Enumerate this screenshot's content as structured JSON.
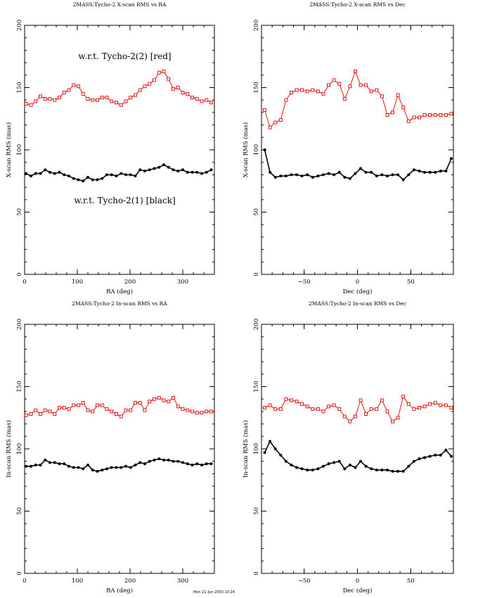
{
  "footer": "Mon 21-Jun-2003 10:24",
  "chart_data": [
    {
      "id": "xscan-ra",
      "type": "line",
      "title": "2MASS:Tycho-2 X-scan RMS vs RA",
      "xlabel": "RA (deg)",
      "ylabel": "X-scan RMS (mas)",
      "xlim": [
        0,
        360
      ],
      "ylim": [
        0,
        200
      ],
      "xticks": [
        0,
        100,
        200,
        300
      ],
      "yticks": [
        0,
        50,
        100,
        150,
        200
      ],
      "annotations": [
        {
          "text": "w.r.t. Tycho-2(2) [red]",
          "x": 190,
          "y": 173
        },
        {
          "text": "w.r.t. Tycho-2(1) [black]",
          "x": 190,
          "y": 57
        }
      ],
      "series": [
        {
          "name": "w.r.t. Tycho-2(2) [red]",
          "color": "#e00000",
          "marker": "square-open",
          "x": [
            3,
            12,
            21,
            30,
            39,
            48,
            57,
            66,
            75,
            84,
            93,
            102,
            111,
            120,
            129,
            138,
            147,
            156,
            165,
            174,
            183,
            192,
            201,
            210,
            219,
            228,
            237,
            246,
            255,
            264,
            273,
            282,
            291,
            300,
            309,
            318,
            327,
            336,
            345,
            354
          ],
          "y": [
            137,
            136,
            139,
            143,
            141,
            141,
            140,
            142,
            146,
            148,
            152,
            151,
            145,
            141,
            140,
            140,
            142,
            142,
            139,
            138,
            136,
            139,
            142,
            144,
            148,
            151,
            153,
            156,
            162,
            163,
            157,
            149,
            150,
            146,
            145,
            142,
            141,
            139,
            140,
            138
          ]
        },
        {
          "name": "w.r.t. Tycho-2(1) [black]",
          "color": "#000000",
          "marker": "filled",
          "x": [
            3,
            12,
            21,
            30,
            39,
            48,
            57,
            66,
            75,
            84,
            93,
            102,
            111,
            120,
            129,
            138,
            147,
            156,
            165,
            174,
            183,
            192,
            201,
            210,
            219,
            228,
            237,
            246,
            255,
            264,
            273,
            282,
            291,
            300,
            309,
            318,
            327,
            336,
            345,
            354
          ],
          "y": [
            81,
            79,
            81,
            81,
            84,
            82,
            81,
            82,
            80,
            79,
            77,
            76,
            75,
            78,
            76,
            76,
            77,
            80,
            80,
            79,
            81,
            80,
            80,
            79,
            84,
            83,
            84,
            85,
            86,
            88,
            86,
            84,
            83,
            84,
            82,
            82,
            82,
            81,
            82,
            84
          ]
        }
      ]
    },
    {
      "id": "xscan-dec",
      "type": "line",
      "title": "2MASS:Tycho-2 X-scan RMS vs Dec",
      "xlabel": "Dec (deg)",
      "ylabel": "X-scan RMS (mas)",
      "xlim": [
        -90,
        90
      ],
      "ylim": [
        0,
        200
      ],
      "xticks": [
        -50,
        0,
        50
      ],
      "yticks": [
        0,
        50,
        100,
        150,
        200
      ],
      "series": [
        {
          "name": "w.r.t. Tycho-2(2) [red]",
          "color": "#e00000",
          "marker": "square-open",
          "x": [
            -87,
            -82,
            -77,
            -72,
            -67,
            -62,
            -57,
            -52,
            -47,
            -42,
            -37,
            -32,
            -27,
            -22,
            -17,
            -12,
            -7,
            -2,
            3,
            8,
            13,
            18,
            23,
            28,
            33,
            38,
            43,
            48,
            53,
            58,
            63,
            68,
            73,
            78,
            83,
            88
          ],
          "y": [
            132,
            118,
            122,
            124,
            140,
            146,
            148,
            148,
            147,
            148,
            147,
            145,
            152,
            156,
            153,
            141,
            151,
            163,
            152,
            152,
            147,
            148,
            143,
            128,
            130,
            144,
            134,
            123,
            126,
            126,
            128,
            128,
            128,
            128,
            128,
            129
          ]
        },
        {
          "name": "w.r.t. Tycho-2(1) [black]",
          "color": "#000000",
          "marker": "filled",
          "x": [
            -87,
            -82,
            -77,
            -72,
            -67,
            -62,
            -57,
            -52,
            -47,
            -42,
            -37,
            -32,
            -27,
            -22,
            -17,
            -12,
            -7,
            -2,
            3,
            8,
            13,
            18,
            23,
            28,
            33,
            38,
            43,
            48,
            53,
            58,
            63,
            68,
            73,
            78,
            83,
            88
          ],
          "y": [
            100,
            82,
            78,
            79,
            79,
            80,
            80,
            79,
            80,
            78,
            79,
            80,
            81,
            80,
            82,
            78,
            77,
            81,
            85,
            82,
            82,
            79,
            80,
            79,
            80,
            80,
            76,
            80,
            84,
            83,
            82,
            82,
            82,
            83,
            83,
            93
          ]
        }
      ]
    },
    {
      "id": "inscan-ra",
      "type": "line",
      "title": "2MASS:Tycho-2 In-scan RMS vs RA",
      "xlabel": "RA (deg)",
      "ylabel": "In-scan RMS (mas)",
      "xlim": [
        0,
        360
      ],
      "ylim": [
        0,
        200
      ],
      "xticks": [
        0,
        100,
        200,
        300
      ],
      "yticks": [
        0,
        50,
        100,
        150,
        200
      ],
      "series": [
        {
          "name": "w.r.t. Tycho-2(2) [red]",
          "color": "#e00000",
          "marker": "square-open",
          "x": [
            3,
            12,
            21,
            30,
            39,
            48,
            57,
            66,
            75,
            84,
            93,
            102,
            111,
            120,
            129,
            138,
            147,
            156,
            165,
            174,
            183,
            192,
            201,
            210,
            219,
            228,
            237,
            246,
            255,
            264,
            273,
            282,
            291,
            300,
            309,
            318,
            327,
            336,
            345,
            354
          ],
          "y": [
            127,
            128,
            131,
            128,
            131,
            130,
            128,
            133,
            133,
            132,
            135,
            135,
            137,
            131,
            130,
            135,
            135,
            132,
            130,
            128,
            126,
            131,
            131,
            137,
            137,
            131,
            138,
            140,
            141,
            139,
            138,
            141,
            134,
            132,
            131,
            130,
            129,
            129,
            130,
            130
          ]
        },
        {
          "name": "w.r.t. Tycho-2(1) [black]",
          "color": "#000000",
          "marker": "filled",
          "x": [
            3,
            12,
            21,
            30,
            39,
            48,
            57,
            66,
            75,
            84,
            93,
            102,
            111,
            120,
            129,
            138,
            147,
            156,
            165,
            174,
            183,
            192,
            201,
            210,
            219,
            228,
            237,
            246,
            255,
            264,
            273,
            282,
            291,
            300,
            309,
            318,
            327,
            336,
            345,
            354
          ],
          "y": [
            86,
            86,
            87,
            87,
            91,
            89,
            89,
            88,
            88,
            86,
            85,
            85,
            84,
            87,
            83,
            82,
            83,
            84,
            85,
            85,
            85,
            86,
            85,
            87,
            89,
            88,
            90,
            91,
            92,
            91,
            91,
            90,
            90,
            89,
            88,
            87,
            88,
            87,
            88,
            88
          ]
        }
      ]
    },
    {
      "id": "inscan-dec",
      "type": "line",
      "title": "2MASS:Tycho-2 In-scan RMS vs Dec",
      "xlabel": "Dec (deg)",
      "ylabel": "In-scan RMS (mas)",
      "xlim": [
        -90,
        90
      ],
      "ylim": [
        0,
        200
      ],
      "xticks": [
        -50,
        0,
        50
      ],
      "yticks": [
        0,
        50,
        100,
        150,
        200
      ],
      "series": [
        {
          "name": "w.r.t. Tycho-2(2) [red]",
          "color": "#e00000",
          "marker": "square-open",
          "x": [
            -87,
            -82,
            -77,
            -72,
            -67,
            -62,
            -57,
            -52,
            -47,
            -42,
            -37,
            -32,
            -27,
            -22,
            -17,
            -12,
            -7,
            -2,
            3,
            8,
            13,
            18,
            23,
            28,
            33,
            38,
            43,
            48,
            53,
            58,
            63,
            68,
            73,
            78,
            83,
            88
          ],
          "y": [
            133,
            135,
            132,
            132,
            140,
            139,
            138,
            136,
            134,
            132,
            132,
            130,
            134,
            135,
            132,
            126,
            122,
            126,
            139,
            128,
            132,
            132,
            139,
            130,
            122,
            125,
            142,
            136,
            132,
            133,
            134,
            136,
            137,
            135,
            135,
            133
          ]
        },
        {
          "name": "w.r.t. Tycho-2(1) [black]",
          "color": "#000000",
          "marker": "filled",
          "x": [
            -87,
            -82,
            -77,
            -72,
            -67,
            -62,
            -57,
            -52,
            -47,
            -42,
            -37,
            -32,
            -27,
            -22,
            -17,
            -12,
            -7,
            -2,
            3,
            8,
            13,
            18,
            23,
            28,
            33,
            38,
            43,
            48,
            53,
            58,
            63,
            68,
            73,
            78,
            83,
            88
          ],
          "y": [
            97,
            106,
            100,
            95,
            90,
            87,
            85,
            84,
            83,
            83,
            84,
            86,
            88,
            89,
            90,
            84,
            87,
            85,
            90,
            86,
            84,
            83,
            83,
            83,
            82,
            82,
            82,
            86,
            90,
            92,
            93,
            94,
            95,
            95,
            99,
            94
          ]
        }
      ]
    }
  ]
}
